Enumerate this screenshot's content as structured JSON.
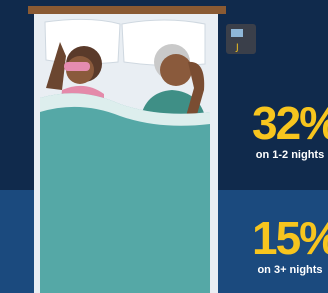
{
  "stats": [
    {
      "value": "32%",
      "label": "on 1-2 nights"
    },
    {
      "value": "15%",
      "label": "on 3+ nights"
    }
  ]
}
